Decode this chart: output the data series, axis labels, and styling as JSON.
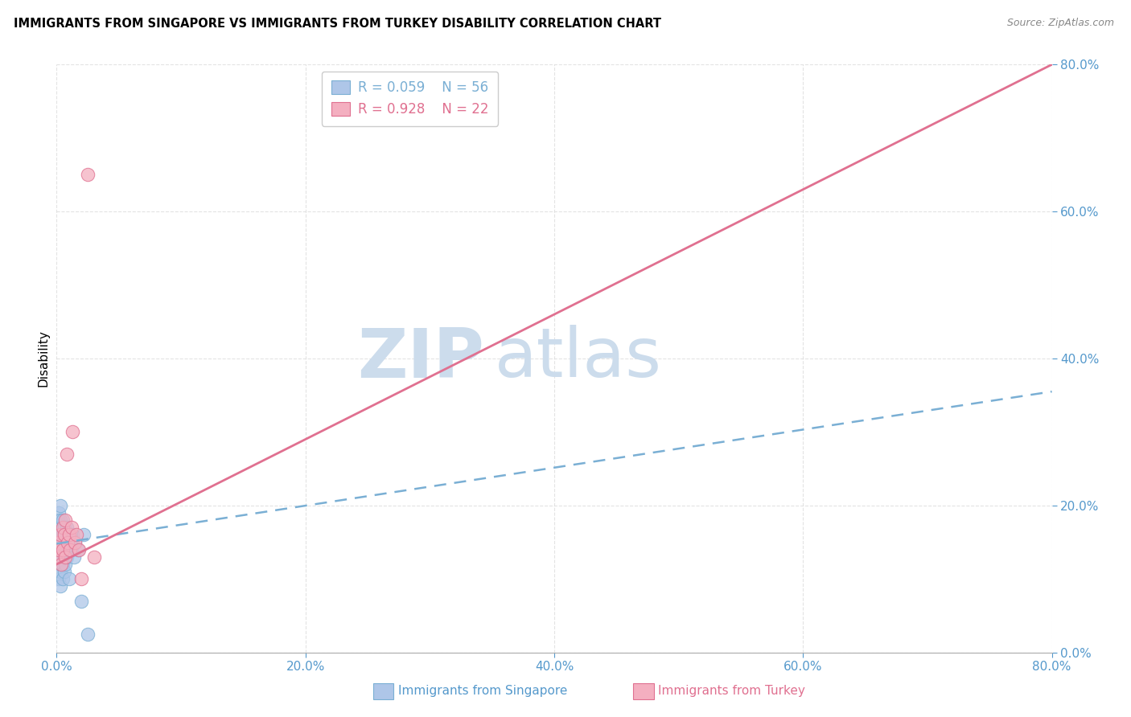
{
  "title": "IMMIGRANTS FROM SINGAPORE VS IMMIGRANTS FROM TURKEY DISABILITY CORRELATION CHART",
  "source": "Source: ZipAtlas.com",
  "ylabel": "Disability",
  "xlim": [
    0.0,
    0.8
  ],
  "ylim": [
    0.0,
    0.8
  ],
  "xticks": [
    0.0,
    0.2,
    0.4,
    0.6,
    0.8
  ],
  "yticks": [
    0.0,
    0.2,
    0.4,
    0.6,
    0.8
  ],
  "singapore_color": "#aec6e8",
  "singapore_edge": "#7aafd4",
  "turkey_color": "#f4afc0",
  "turkey_edge": "#e07090",
  "singapore_R": 0.059,
  "singapore_N": 56,
  "turkey_R": 0.928,
  "turkey_N": 22,
  "trend_singapore_color": "#7aafd4",
  "trend_turkey_color": "#e07090",
  "watermark_zip": "ZIP",
  "watermark_atlas": "atlas",
  "watermark_color": "#ccdcec",
  "sg_trend_x0": 0.0,
  "sg_trend_y0": 0.148,
  "sg_trend_x1": 0.8,
  "sg_trend_y1": 0.355,
  "tr_trend_x0": 0.0,
  "tr_trend_y0": 0.12,
  "tr_trend_x1": 0.8,
  "tr_trend_y1": 0.8,
  "singapore_x": [
    0.001,
    0.001,
    0.001,
    0.001,
    0.001,
    0.002,
    0.002,
    0.002,
    0.002,
    0.002,
    0.002,
    0.002,
    0.002,
    0.003,
    0.003,
    0.003,
    0.003,
    0.003,
    0.003,
    0.003,
    0.003,
    0.003,
    0.004,
    0.004,
    0.004,
    0.004,
    0.004,
    0.004,
    0.005,
    0.005,
    0.005,
    0.005,
    0.005,
    0.005,
    0.006,
    0.006,
    0.006,
    0.006,
    0.007,
    0.007,
    0.007,
    0.008,
    0.008,
    0.008,
    0.009,
    0.01,
    0.01,
    0.011,
    0.012,
    0.013,
    0.014,
    0.015,
    0.017,
    0.02,
    0.022,
    0.025
  ],
  "singapore_y": [
    0.14,
    0.15,
    0.16,
    0.17,
    0.18,
    0.1,
    0.12,
    0.13,
    0.14,
    0.15,
    0.16,
    0.17,
    0.19,
    0.09,
    0.11,
    0.13,
    0.14,
    0.15,
    0.16,
    0.17,
    0.18,
    0.2,
    0.12,
    0.13,
    0.14,
    0.15,
    0.16,
    0.17,
    0.1,
    0.12,
    0.14,
    0.15,
    0.16,
    0.18,
    0.11,
    0.13,
    0.15,
    0.17,
    0.12,
    0.14,
    0.16,
    0.13,
    0.15,
    0.17,
    0.14,
    0.1,
    0.16,
    0.15,
    0.14,
    0.16,
    0.13,
    0.15,
    0.14,
    0.07,
    0.16,
    0.025
  ],
  "turkey_x": [
    0.001,
    0.001,
    0.002,
    0.003,
    0.004,
    0.005,
    0.005,
    0.006,
    0.007,
    0.007,
    0.008,
    0.009,
    0.01,
    0.011,
    0.012,
    0.013,
    0.015,
    0.016,
    0.018,
    0.02,
    0.025,
    0.03
  ],
  "turkey_y": [
    0.13,
    0.15,
    0.14,
    0.16,
    0.12,
    0.14,
    0.17,
    0.16,
    0.13,
    0.18,
    0.27,
    0.15,
    0.16,
    0.14,
    0.17,
    0.3,
    0.15,
    0.16,
    0.14,
    0.1,
    0.65,
    0.13
  ]
}
